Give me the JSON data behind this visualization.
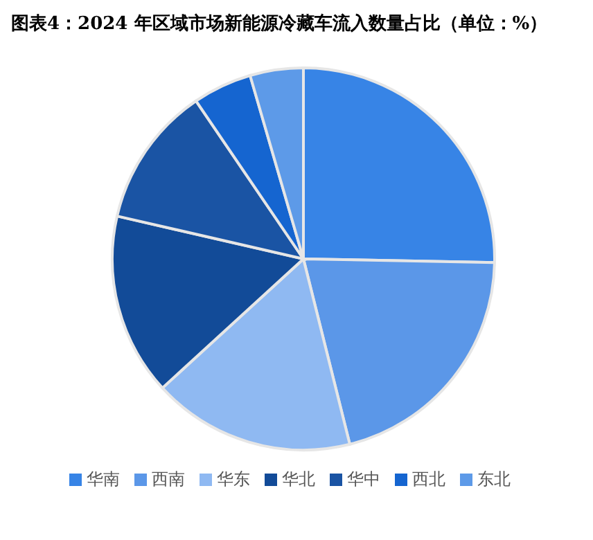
{
  "chart_data": {
    "type": "pie",
    "title": "图表4：2024 年区域市场新能源冷藏车流入数量占比（单位：%）",
    "categories": [
      "华南",
      "西南",
      "华东",
      "华北",
      "华中",
      "西北",
      "东北"
    ],
    "values": [
      25.3,
      20.8,
      17.1,
      15.4,
      11.9,
      5.0,
      4.5
    ],
    "colors": [
      "#3784e6",
      "#5b97e8",
      "#8fb9f2",
      "#124b98",
      "#1a54a4",
      "#1565d0",
      "#5d9ae8"
    ],
    "legend": "bottom"
  }
}
